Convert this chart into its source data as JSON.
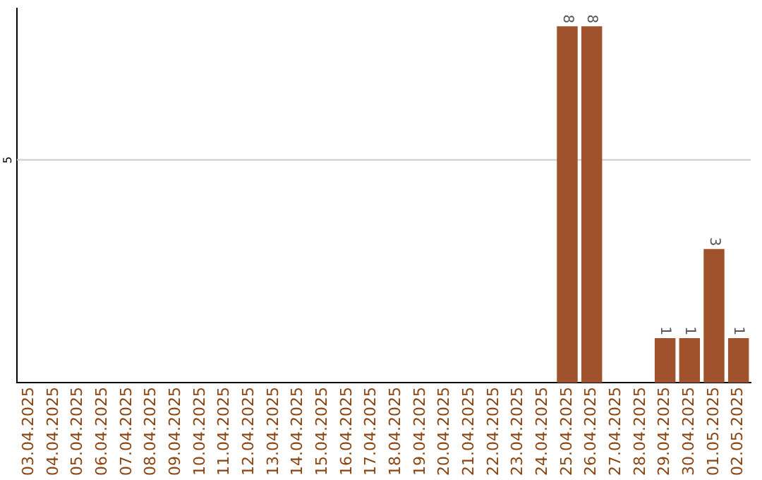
{
  "chart_data": {
    "type": "bar",
    "categories": [
      "03.04.2025",
      "04.04.2025",
      "05.04.2025",
      "06.04.2025",
      "07.04.2025",
      "08.04.2025",
      "09.04.2025",
      "10.04.2025",
      "11.04.2025",
      "12.04.2025",
      "13.04.2025",
      "14.04.2025",
      "15.04.2025",
      "16.04.2025",
      "17.04.2025",
      "18.04.2025",
      "19.04.2025",
      "20.04.2025",
      "21.04.2025",
      "22.04.2025",
      "23.04.2025",
      "24.04.2025",
      "25.04.2025",
      "26.04.2025",
      "27.04.2025",
      "28.04.2025",
      "29.04.2025",
      "30.04.2025",
      "01.05.2025",
      "02.05.2025"
    ],
    "values": [
      null,
      null,
      null,
      null,
      null,
      null,
      null,
      null,
      null,
      null,
      null,
      null,
      null,
      null,
      null,
      null,
      null,
      null,
      null,
      null,
      null,
      null,
      8,
      8,
      null,
      null,
      1,
      1,
      3,
      1
    ],
    "value_labels": [
      null,
      null,
      null,
      null,
      null,
      null,
      null,
      null,
      null,
      null,
      null,
      null,
      null,
      null,
      null,
      null,
      null,
      null,
      null,
      null,
      null,
      null,
      "8",
      "8",
      null,
      null,
      "1",
      "1",
      "3",
      "1"
    ],
    "color": "#a0522d",
    "ylim": [
      0,
      8.4
    ],
    "ref_lines": [
      {
        "axis": "y",
        "value": 5,
        "label": "5",
        "color": "#cccccc"
      }
    ],
    "legend": false
  }
}
